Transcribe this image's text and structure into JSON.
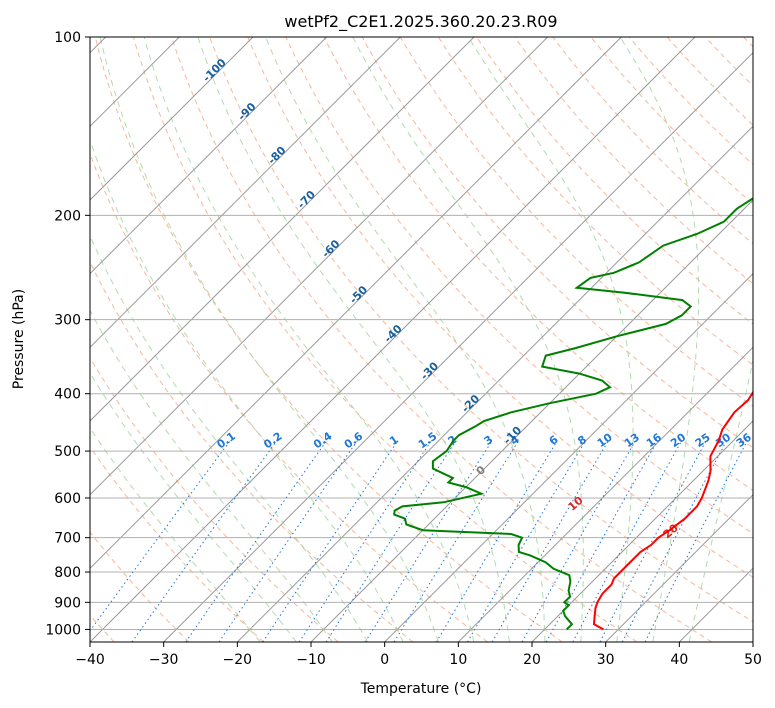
{
  "chart_data": {
    "type": "skew-t log-p",
    "title": "wetPf2_C2E1.2025.360.20.23.R09",
    "xlabel": "Temperature (°C)",
    "ylabel": "Pressure (hPa)",
    "xlim": [
      -40,
      50
    ],
    "plim": [
      1050,
      100
    ],
    "xticks": [
      "−40",
      "−30",
      "−20",
      "−10",
      "0",
      "10",
      "20",
      "30",
      "40",
      "50"
    ],
    "xtick_values": [
      -40,
      -30,
      -20,
      -10,
      0,
      10,
      20,
      30,
      40,
      50
    ],
    "yticks": [
      "100",
      "200",
      "300",
      "400",
      "500",
      "600",
      "700",
      "800",
      "900",
      "1000"
    ],
    "ytick_values": [
      100,
      200,
      300,
      400,
      500,
      600,
      700,
      800,
      900,
      1000
    ],
    "colors": {
      "temperature": "#ff0000",
      "dewpoint": "#008000",
      "isotherm": "#999999",
      "dry_adiabat": "#f4a582",
      "moist_adiabat": "#a6d8a6",
      "mixing_ratio": "#1f77d8",
      "tk_label": "#1a5f9e",
      "theta_label": "#d62728",
      "grid": "#b0b0b0"
    },
    "temperature_series": {
      "name": "Temperature",
      "points": [
        [
          28,
          1000
        ],
        [
          26,
          980
        ],
        [
          25,
          950
        ],
        [
          24,
          920
        ],
        [
          23.5,
          900
        ],
        [
          23,
          870
        ],
        [
          23,
          840
        ],
        [
          22.5,
          820
        ],
        [
          22.5,
          780
        ],
        [
          22.5,
          740
        ],
        [
          23,
          720
        ],
        [
          23,
          700
        ],
        [
          23.5,
          680
        ],
        [
          24,
          650
        ],
        [
          24,
          620
        ],
        [
          23.5,
          600
        ],
        [
          22,
          560
        ],
        [
          21,
          540
        ],
        [
          19,
          510
        ],
        [
          18,
          480
        ],
        [
          17,
          460
        ],
        [
          16.3,
          430
        ],
        [
          16.5,
          410
        ],
        [
          16,
          395
        ],
        [
          15.2,
          380
        ],
        [
          14,
          360
        ],
        [
          12.5,
          340
        ],
        [
          11,
          320
        ],
        [
          9.3,
          300
        ],
        [
          8,
          280
        ],
        [
          7.5,
          260
        ],
        [
          7,
          240
        ],
        [
          6.5,
          220
        ],
        [
          6,
          200
        ],
        [
          5.5,
          190
        ],
        [
          4,
          180
        ],
        [
          2.5,
          170
        ],
        [
          1.5,
          160
        ],
        [
          1.4,
          150
        ],
        [
          1.4,
          140
        ],
        [
          1.3,
          130
        ],
        [
          1.3,
          125
        ],
        [
          1.2,
          120
        ],
        [
          0.5,
          115
        ],
        [
          -0.5,
          110
        ],
        [
          -1.5,
          105
        ],
        [
          -2,
          100
        ]
      ]
    },
    "dewpoint_series": {
      "name": "Dewpoint",
      "points": [
        [
          23,
          1000
        ],
        [
          23,
          980
        ],
        [
          21,
          950
        ],
        [
          20,
          930
        ],
        [
          20,
          910
        ],
        [
          19,
          900
        ],
        [
          19,
          880
        ],
        [
          18,
          860
        ],
        [
          17,
          830
        ],
        [
          16,
          810
        ],
        [
          13,
          790
        ],
        [
          11,
          770
        ],
        [
          8,
          750
        ],
        [
          6,
          740
        ],
        [
          5,
          720
        ],
        [
          4.5,
          700
        ],
        [
          2.5,
          690
        ],
        [
          -10,
          680
        ],
        [
          -13,
          665
        ],
        [
          -14,
          650
        ],
        [
          -16,
          640
        ],
        [
          -16.5,
          630
        ],
        [
          -16,
          620
        ],
        [
          -11,
          610
        ],
        [
          -7,
          590
        ],
        [
          -10,
          575
        ],
        [
          -13,
          565
        ],
        [
          -13,
          555
        ],
        [
          -15,
          545
        ],
        [
          -17,
          535
        ],
        [
          -18,
          520
        ],
        [
          -17.5,
          500
        ],
        [
          -18,
          480
        ],
        [
          -18,
          470
        ],
        [
          -17,
          455
        ],
        [
          -16.5,
          445
        ],
        [
          -14,
          430
        ],
        [
          -10,
          415
        ],
        [
          -5,
          400
        ],
        [
          -4,
          390
        ],
        [
          -6,
          380
        ],
        [
          -10,
          370
        ],
        [
          -16,
          360
        ],
        [
          -17,
          345
        ],
        [
          -14,
          335
        ],
        [
          -10,
          320
        ],
        [
          -5,
          305
        ],
        [
          -4,
          295
        ],
        [
          -4,
          285
        ],
        [
          -6,
          278
        ],
        [
          -15,
          270
        ],
        [
          -22,
          265
        ],
        [
          -21.5,
          255
        ],
        [
          -19,
          250
        ],
        [
          -17,
          240
        ],
        [
          -16,
          225
        ],
        [
          -13,
          215
        ],
        [
          -11,
          205
        ],
        [
          -11,
          195
        ],
        [
          -10,
          185
        ],
        [
          -7.5,
          175
        ],
        [
          -6,
          165
        ],
        [
          -5.5,
          155
        ],
        [
          -5.5,
          140
        ],
        [
          -5.5,
          130
        ],
        [
          -5.2,
          125
        ],
        [
          -5,
          120
        ],
        [
          -4.5,
          115
        ],
        [
          -3,
          108
        ],
        [
          -1,
          102
        ],
        [
          0,
          100
        ]
      ]
    },
    "dry_adiabat_labels": [
      {
        "text": "0",
        "theta": 0
      },
      {
        "text": "10",
        "theta": 10
      },
      {
        "text": "20",
        "theta": 20
      },
      {
        "text": "30",
        "theta": 30
      },
      {
        "text": "40",
        "theta": 40
      }
    ],
    "isotherm_temp_labels": [
      {
        "text": "-100",
        "t": -100,
        "p": 115
      },
      {
        "text": "-90",
        "t": -90,
        "p": 135
      },
      {
        "text": "-80",
        "t": -80,
        "p": 160
      },
      {
        "text": "-70",
        "t": -70,
        "p": 190
      },
      {
        "text": "-60",
        "t": -60,
        "p": 230
      },
      {
        "text": "-50",
        "t": -50,
        "p": 275
      },
      {
        "text": "-40",
        "t": -40,
        "p": 320
      },
      {
        "text": "-30",
        "t": -30,
        "p": 370
      },
      {
        "text": "-20",
        "t": -20,
        "p": 420
      },
      {
        "text": "-10",
        "t": -10,
        "p": 475
      }
    ],
    "mixing_ratio_labels": [
      "0.1",
      "0.2",
      "0.4",
      "0.6",
      "1",
      "1.5",
      "2",
      "3",
      "4",
      "6",
      "8",
      "10",
      "13",
      "16",
      "20",
      "25",
      "30",
      "36"
    ],
    "mixing_ratio_values": [
      0.1,
      0.2,
      0.4,
      0.6,
      1,
      1.5,
      2,
      3,
      4,
      6,
      8,
      10,
      13,
      16,
      20,
      25,
      30,
      36
    ]
  }
}
